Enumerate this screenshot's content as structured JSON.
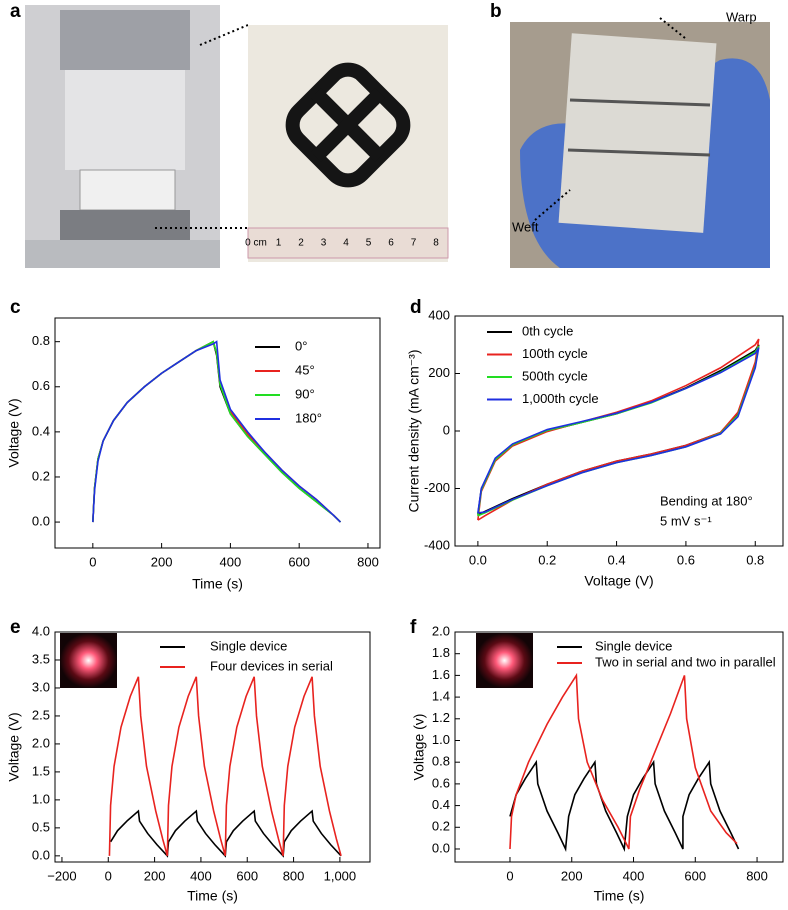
{
  "photos": [
    {
      "panel_label": "a",
      "ruler_labels": [
        "0 cm",
        "1",
        "2",
        "3",
        "4",
        "5",
        "6",
        "7",
        "8"
      ]
    },
    {
      "panel_label": "b",
      "annotations": [
        "Warp",
        "Weft"
      ]
    }
  ],
  "chart_data": [
    {
      "type": "line",
      "panel_label": "c",
      "x_label": "Time (s)",
      "y_label": "Voltage (V)",
      "xlim": [
        -110,
        835
      ],
      "ylim": [
        -0.115,
        0.905
      ],
      "xticks": [
        0,
        200,
        400,
        600,
        800
      ],
      "yticks": [
        {
          "value": 0,
          "label": "0.0"
        },
        0.2,
        0.4,
        0.6,
        0.8
      ],
      "x": [
        0,
        5,
        15,
        30,
        60,
        100,
        150,
        200,
        250,
        300,
        350,
        360,
        370,
        400,
        450,
        500,
        550,
        600,
        650,
        700,
        720
      ],
      "series": [
        {
          "name": "0°",
          "color": "#000000",
          "values": [
            0,
            0.15,
            0.28,
            0.36,
            0.45,
            0.53,
            0.6,
            0.66,
            0.71,
            0.76,
            0.8,
            0.74,
            0.6,
            0.48,
            0.38,
            0.3,
            0.22,
            0.15,
            0.09,
            0.03,
            0
          ]
        },
        {
          "name": "45°",
          "color": "#e8231f",
          "values": [
            0,
            0.15,
            0.28,
            0.36,
            0.45,
            0.53,
            0.6,
            0.66,
            0.71,
            0.76,
            0.8,
            0.75,
            0.61,
            0.49,
            0.39,
            0.31,
            0.23,
            0.16,
            0.1,
            0.03,
            0
          ]
        },
        {
          "name": "90°",
          "color": "#22dd22",
          "values": [
            0,
            0.15,
            0.28,
            0.36,
            0.45,
            0.53,
            0.6,
            0.66,
            0.71,
            0.76,
            0.8,
            0.75,
            0.61,
            0.48,
            0.38,
            0.3,
            0.22,
            0.15,
            0.09,
            0.03,
            0
          ]
        },
        {
          "name": "180°",
          "color": "#1f2fe0",
          "values": [
            0,
            0.14,
            0.27,
            0.36,
            0.45,
            0.53,
            0.6,
            0.66,
            0.71,
            0.76,
            0.79,
            0.8,
            0.63,
            0.5,
            0.4,
            0.31,
            0.23,
            0.16,
            0.1,
            0.03,
            0
          ]
        }
      ]
    },
    {
      "type": "line",
      "panel_label": "d",
      "x_label": "Voltage (V)",
      "y_label": "Current density (mA cm⁻³)",
      "xlim": [
        -0.066,
        0.88
      ],
      "ylim": [
        -400,
        400
      ],
      "xticks": [
        {
          "value": 0,
          "label": "0.0"
        },
        0.2,
        0.4,
        0.6,
        0.8
      ],
      "yticks": [
        -400,
        -200,
        0,
        200,
        400
      ],
      "annotations": [
        "Bending at 180°",
        "5 mV s⁻¹"
      ],
      "x": [
        0,
        0.01,
        0.05,
        0.1,
        0.2,
        0.3,
        0.4,
        0.5,
        0.6,
        0.7,
        0.8,
        0.81,
        0.8,
        0.75,
        0.7,
        0.6,
        0.5,
        0.4,
        0.3,
        0.2,
        0.1,
        0.02,
        0
      ],
      "series": [
        {
          "name": "0th cycle",
          "color": "#000000",
          "values": [
            -290,
            -200,
            -100,
            -50,
            0,
            30,
            60,
            100,
            150,
            210,
            280,
            300,
            230,
            60,
            -5,
            -50,
            -80,
            -105,
            -140,
            -185,
            -235,
            -280,
            -290
          ]
        },
        {
          "name": "100th cycle",
          "color": "#e8231f",
          "values": [
            -310,
            -210,
            -105,
            -52,
            -2,
            32,
            65,
            105,
            158,
            220,
            300,
            320,
            240,
            65,
            -5,
            -50,
            -80,
            -105,
            -140,
            -185,
            -240,
            -295,
            -310
          ]
        },
        {
          "name": "500th cycle",
          "color": "#22dd22",
          "values": [
            -295,
            -205,
            -100,
            -48,
            2,
            30,
            60,
            98,
            148,
            205,
            275,
            295,
            225,
            55,
            -8,
            -55,
            -85,
            -110,
            -145,
            -190,
            -240,
            -285,
            -295
          ]
        },
        {
          "name": "1,000th cycle",
          "color": "#1f2fe0",
          "values": [
            -285,
            -200,
            -95,
            -45,
            5,
            33,
            62,
            100,
            148,
            203,
            270,
            290,
            220,
            50,
            -10,
            -55,
            -85,
            -110,
            -145,
            -190,
            -238,
            -282,
            -285
          ]
        }
      ]
    },
    {
      "type": "line",
      "panel_label": "e",
      "x_label": "Time (s)",
      "y_label": "Voltage (V)",
      "xlim": [
        -230,
        1130
      ],
      "ylim": [
        -0.11,
        4.0
      ],
      "xticks": [
        {
          "value": -200,
          "label": "−200"
        },
        0,
        200,
        400,
        600,
        800,
        {
          "value": 1000,
          "label": "1,000"
        }
      ],
      "yticks": [
        {
          "value": 0,
          "label": "0.0"
        },
        0.5,
        {
          "value": 1,
          "label": "1.0"
        },
        1.5,
        {
          "value": 2,
          "label": "2.0"
        },
        2.5,
        {
          "value": 3,
          "label": "3.0"
        },
        3.5,
        {
          "value": 4,
          "label": "4.0"
        }
      ],
      "series": [
        {
          "name": "Single device",
          "color": "#000000",
          "x": [
            10,
            40,
            80,
            130,
            135,
            170,
            210,
            255,
            260,
            290,
            330,
            380,
            385,
            420,
            460,
            505,
            510,
            540,
            580,
            630,
            635,
            670,
            710,
            755,
            760,
            790,
            830,
            880,
            885,
            920,
            960,
            1005
          ],
          "values": [
            0.25,
            0.45,
            0.62,
            0.8,
            0.62,
            0.4,
            0.2,
            0,
            0.25,
            0.45,
            0.62,
            0.8,
            0.62,
            0.4,
            0.2,
            0,
            0.25,
            0.45,
            0.62,
            0.8,
            0.62,
            0.4,
            0.2,
            0,
            0.25,
            0.45,
            0.62,
            0.8,
            0.62,
            0.4,
            0.2,
            0
          ]
        },
        {
          "name": "Four devices in serial",
          "color": "#e8231f",
          "x": [
            5,
            10,
            25,
            55,
            95,
            130,
            140,
            165,
            205,
            235,
            255,
            255,
            260,
            275,
            305,
            345,
            380,
            390,
            415,
            455,
            485,
            505,
            505,
            510,
            525,
            555,
            595,
            630,
            640,
            665,
            705,
            735,
            755,
            755,
            760,
            775,
            805,
            845,
            880,
            890,
            915,
            955,
            985,
            1005
          ],
          "values": [
            0,
            0.9,
            1.6,
            2.3,
            2.85,
            3.2,
            2.5,
            1.6,
            0.8,
            0.3,
            0,
            0,
            0.9,
            1.6,
            2.3,
            2.85,
            3.2,
            2.5,
            1.6,
            0.8,
            0.3,
            0,
            0,
            0.9,
            1.6,
            2.3,
            2.85,
            3.2,
            2.5,
            1.6,
            0.8,
            0.3,
            0,
            0,
            0.9,
            1.6,
            2.3,
            2.85,
            3.2,
            2.5,
            1.6,
            0.8,
            0.3,
            0
          ]
        }
      ]
    },
    {
      "type": "line",
      "panel_label": "f",
      "x_label": "Time (s)",
      "y_label": "Voltage (v)",
      "xlim": [
        -178,
        884
      ],
      "ylim": [
        -0.12,
        2.0
      ],
      "xticks": [
        0,
        200,
        400,
        600,
        800
      ],
      "yticks": [
        {
          "value": 0,
          "label": "0.0"
        },
        0.2,
        0.4,
        0.6,
        0.8,
        {
          "value": 1,
          "label": "1.0"
        },
        1.2,
        1.4,
        1.6,
        1.8,
        {
          "value": 2,
          "label": "2.0"
        }
      ],
      "series": [
        {
          "name": "Single device",
          "color": "#000000",
          "x": [
            0,
            20,
            50,
            85,
            90,
            120,
            155,
            180,
            190,
            210,
            240,
            275,
            280,
            310,
            345,
            370,
            380,
            400,
            430,
            465,
            470,
            500,
            535,
            560,
            560,
            580,
            610,
            645,
            650,
            680,
            715,
            740
          ],
          "values": [
            0.3,
            0.5,
            0.65,
            0.8,
            0.6,
            0.35,
            0.15,
            0,
            0.3,
            0.5,
            0.65,
            0.8,
            0.6,
            0.35,
            0.15,
            0,
            0.3,
            0.5,
            0.65,
            0.8,
            0.6,
            0.35,
            0.15,
            0,
            0.3,
            0.5,
            0.65,
            0.8,
            0.6,
            0.35,
            0.15,
            0
          ]
        },
        {
          "name": "Two in serial and two in parallel",
          "color": "#e8231f",
          "x": [
            0,
            5,
            20,
            60,
            120,
            170,
            215,
            222,
            250,
            300,
            350,
            380,
            385,
            390,
            420,
            470,
            520,
            565,
            572,
            600,
            650,
            700,
            735
          ],
          "values": [
            0,
            0.3,
            0.5,
            0.8,
            1.15,
            1.4,
            1.6,
            1.2,
            0.8,
            0.45,
            0.2,
            0.03,
            0,
            0.3,
            0.55,
            0.9,
            1.25,
            1.6,
            1.2,
            0.75,
            0.35,
            0.15,
            0.05
          ]
        }
      ]
    }
  ]
}
